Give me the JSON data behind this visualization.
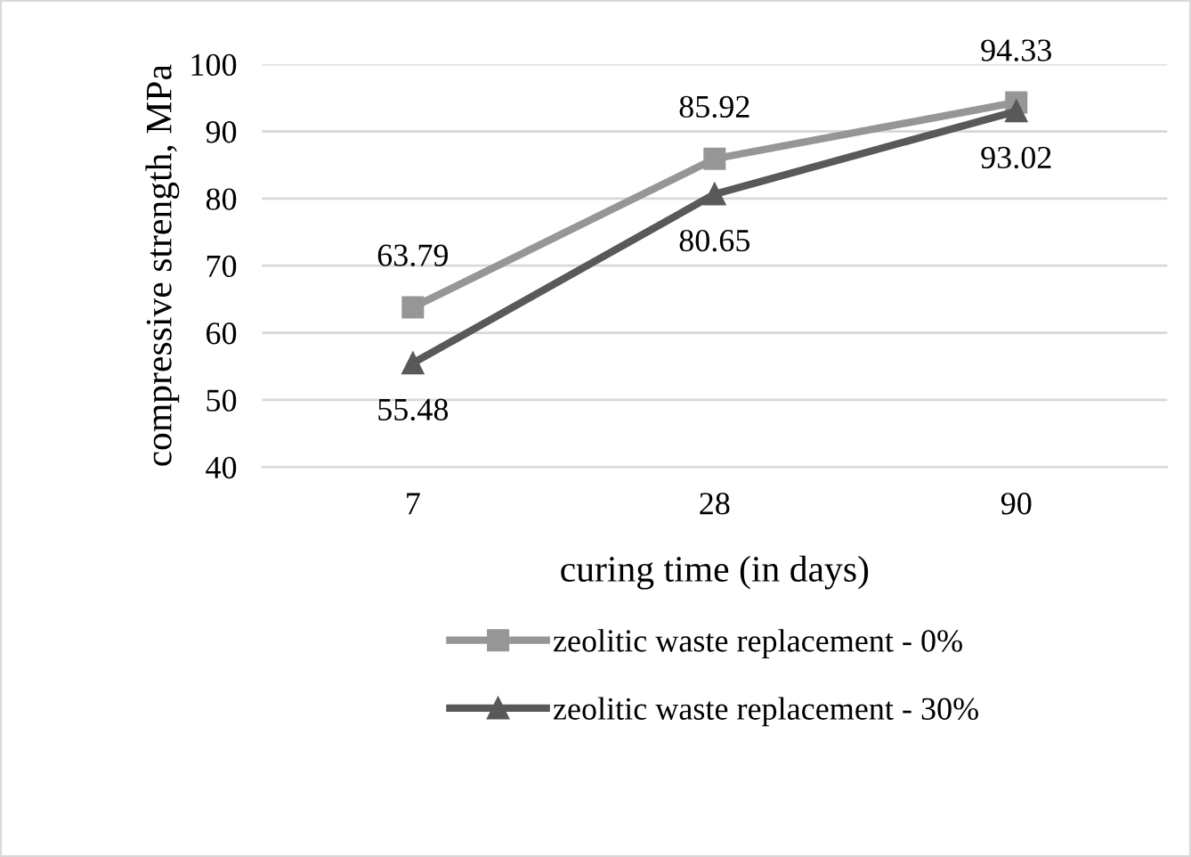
{
  "chart_data": {
    "type": "line",
    "xlabel": "curing time (in days)",
    "ylabel": "compressive strength, MPa",
    "categories": [
      "7",
      "28",
      "90"
    ],
    "series": [
      {
        "name": "zeolitic waste replacement - 0%",
        "color": "#969696",
        "values": [
          63.79,
          85.92,
          94.33
        ],
        "marker": "square"
      },
      {
        "name": "zeolitic waste replacement - 30%",
        "color": "#595959",
        "values": [
          55.48,
          80.65,
          93.02
        ],
        "marker": "triangle"
      }
    ],
    "ylim": [
      40,
      100
    ],
    "yticks": [
      40,
      50,
      60,
      70,
      80,
      90,
      100
    ],
    "grid": "y",
    "legend": "bottom",
    "data_labels": true,
    "line_style": "solid"
  }
}
